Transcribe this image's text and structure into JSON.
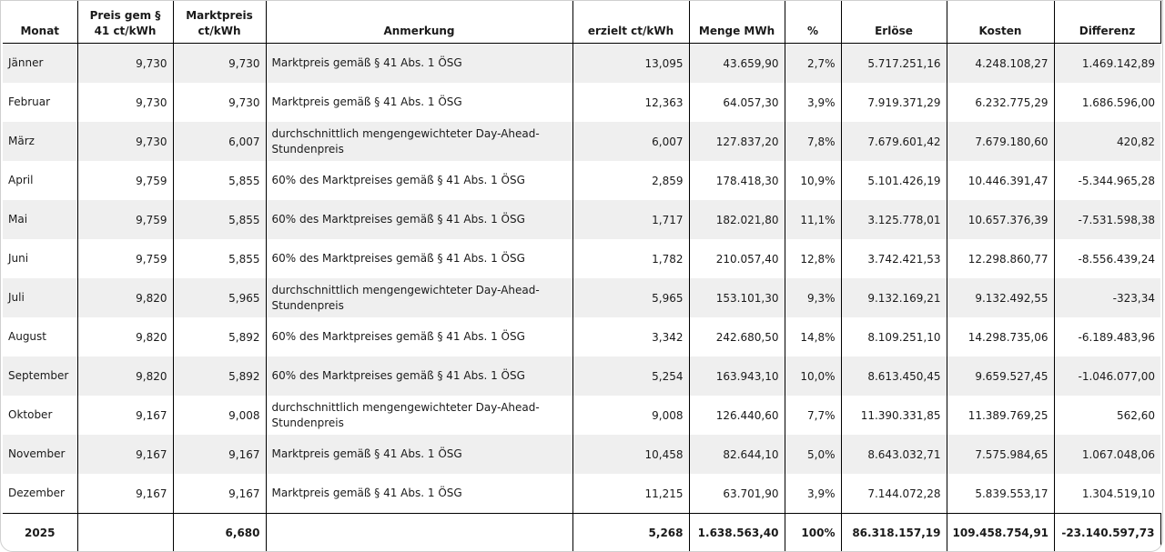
{
  "headers": {
    "monat": "Monat",
    "preis": "Preis gem § 41 ct/kWh",
    "marktpreis": "Marktpreis ct/kWh",
    "anmerkung": "Anmerkung",
    "erzielt": "erzielt ct/kWh",
    "menge": "Menge MWh",
    "prozent": "%",
    "erloese": "Erlöse",
    "kosten": "Kosten",
    "differenz": "Differenz"
  },
  "rows": [
    {
      "monat": "Jänner",
      "preis": "9,730",
      "marktpreis": "9,730",
      "anmerkung": "Marktpreis gemäß § 41 Abs. 1 ÖSG",
      "erzielt": "13,095",
      "menge": "43.659,90",
      "prozent": "2,7%",
      "erloese": "5.717.251,16",
      "kosten": "4.248.108,27",
      "differenz": "1.469.142,89"
    },
    {
      "monat": "Februar",
      "preis": "9,730",
      "marktpreis": "9,730",
      "anmerkung": "Marktpreis gemäß § 41 Abs. 1 ÖSG",
      "erzielt": "12,363",
      "menge": "64.057,30",
      "prozent": "3,9%",
      "erloese": "7.919.371,29",
      "kosten": "6.232.775,29",
      "differenz": "1.686.596,00"
    },
    {
      "monat": "März",
      "preis": "9,730",
      "marktpreis": "6,007",
      "anmerkung": "durchschnittlich mengengewichteter Day-Ahead-Stundenpreis",
      "erzielt": "6,007",
      "menge": "127.837,20",
      "prozent": "7,8%",
      "erloese": "7.679.601,42",
      "kosten": "7.679.180,60",
      "differenz": "420,82"
    },
    {
      "monat": "April",
      "preis": "9,759",
      "marktpreis": "5,855",
      "anmerkung": "60% des Marktpreises gemäß § 41 Abs. 1 ÖSG",
      "erzielt": "2,859",
      "menge": "178.418,30",
      "prozent": "10,9%",
      "erloese": "5.101.426,19",
      "kosten": "10.446.391,47",
      "differenz": "-5.344.965,28"
    },
    {
      "monat": "Mai",
      "preis": "9,759",
      "marktpreis": "5,855",
      "anmerkung": "60% des Marktpreises gemäß § 41 Abs. 1 ÖSG",
      "erzielt": "1,717",
      "menge": "182.021,80",
      "prozent": "11,1%",
      "erloese": "3.125.778,01",
      "kosten": "10.657.376,39",
      "differenz": "-7.531.598,38"
    },
    {
      "monat": "Juni",
      "preis": "9,759",
      "marktpreis": "5,855",
      "anmerkung": "60% des Marktpreises gemäß § 41 Abs. 1 ÖSG",
      "erzielt": "1,782",
      "menge": "210.057,40",
      "prozent": "12,8%",
      "erloese": "3.742.421,53",
      "kosten": "12.298.860,77",
      "differenz": "-8.556.439,24"
    },
    {
      "monat": "Juli",
      "preis": "9,820",
      "marktpreis": "5,965",
      "anmerkung": "durchschnittlich mengengewichteter Day-Ahead-Stundenpreis",
      "erzielt": "5,965",
      "menge": "153.101,30",
      "prozent": "9,3%",
      "erloese": "9.132.169,21",
      "kosten": "9.132.492,55",
      "differenz": "-323,34"
    },
    {
      "monat": "August",
      "preis": "9,820",
      "marktpreis": "5,892",
      "anmerkung": "60% des Marktpreises gemäß § 41 Abs. 1 ÖSG",
      "erzielt": "3,342",
      "menge": "242.680,50",
      "prozent": "14,8%",
      "erloese": "8.109.251,10",
      "kosten": "14.298.735,06",
      "differenz": "-6.189.483,96"
    },
    {
      "monat": "September",
      "preis": "9,820",
      "marktpreis": "5,892",
      "anmerkung": "60% des Marktpreises gemäß § 41 Abs. 1 ÖSG",
      "erzielt": "5,254",
      "menge": "163.943,10",
      "prozent": "10,0%",
      "erloese": "8.613.450,45",
      "kosten": "9.659.527,45",
      "differenz": "-1.046.077,00"
    },
    {
      "monat": "Oktober",
      "preis": "9,167",
      "marktpreis": "9,008",
      "anmerkung": "durchschnittlich mengengewichteter Day-Ahead-Stundenpreis",
      "erzielt": "9,008",
      "menge": "126.440,60",
      "prozent": "7,7%",
      "erloese": "11.390.331,85",
      "kosten": "11.389.769,25",
      "differenz": "562,60"
    },
    {
      "monat": "November",
      "preis": "9,167",
      "marktpreis": "9,167",
      "anmerkung": "Marktpreis gemäß § 41 Abs. 1 ÖSG",
      "erzielt": "10,458",
      "menge": "82.644,10",
      "prozent": "5,0%",
      "erloese": "8.643.032,71",
      "kosten": "7.575.984,65",
      "differenz": "1.067.048,06"
    },
    {
      "monat": "Dezember",
      "preis": "9,167",
      "marktpreis": "9,167",
      "anmerkung": "Marktpreis gemäß § 41 Abs. 1 ÖSG",
      "erzielt": "11,215",
      "menge": "63.701,90",
      "prozent": "3,9%",
      "erloese": "7.144.072,28",
      "kosten": "5.839.553,17",
      "differenz": "1.304.519,10"
    }
  ],
  "total": {
    "label": "2025",
    "marktpreis": "6,680",
    "erzielt": "5,268",
    "menge": "1.638.563,40",
    "prozent": "100%",
    "erloese": "86.318.157,19",
    "kosten": "109.458.754,91",
    "differenz": "-23.140.597,73"
  }
}
